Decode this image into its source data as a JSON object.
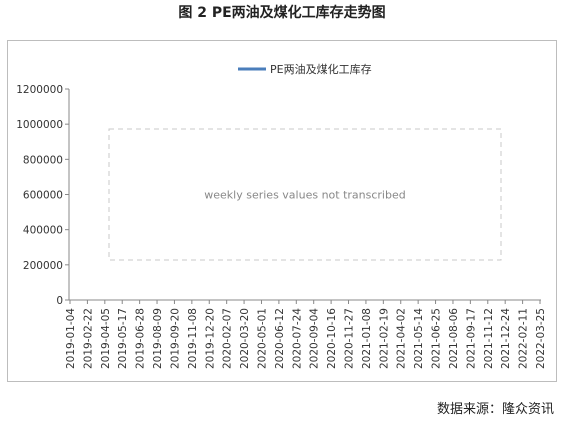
{
  "figure": {
    "title": "图 2  PE两油及煤化工库存走势图",
    "source": "数据来源：隆众资讯"
  },
  "chart_data": {
    "type": "line",
    "title": "",
    "xlabel": "",
    "ylabel": "",
    "ylim": [
      0,
      1200000
    ],
    "yticks": [
      "0",
      "200000",
      "400000",
      "600000",
      "800000",
      "1000000",
      "1200000"
    ],
    "xticks": [
      "2019-01-04",
      "2019-02-22",
      "2019-04-05",
      "2019-05-17",
      "2019-06-28",
      "2019-08-09",
      "2019-09-20",
      "2019-11-08",
      "2019-12-20",
      "2020-02-07",
      "2020-03-20",
      "2020-05-01",
      "2020-06-12",
      "2020-07-24",
      "2020-09-04",
      "2020-10-16",
      "2020-11-27",
      "2021-01-08",
      "2021-02-19",
      "2021-04-02",
      "2021-05-14",
      "2021-06-25",
      "2021-08-06",
      "2021-09-17",
      "2021-11-12",
      "2021-12-24",
      "2022-02-11",
      "2022-03-25"
    ],
    "legend_position": "top",
    "grid": false,
    "series": [
      {
        "name": "PE两油及煤化工库存",
        "color": "#4a7ebb"
      }
    ],
    "series_placeholder": "weekly series values not transcribed"
  }
}
